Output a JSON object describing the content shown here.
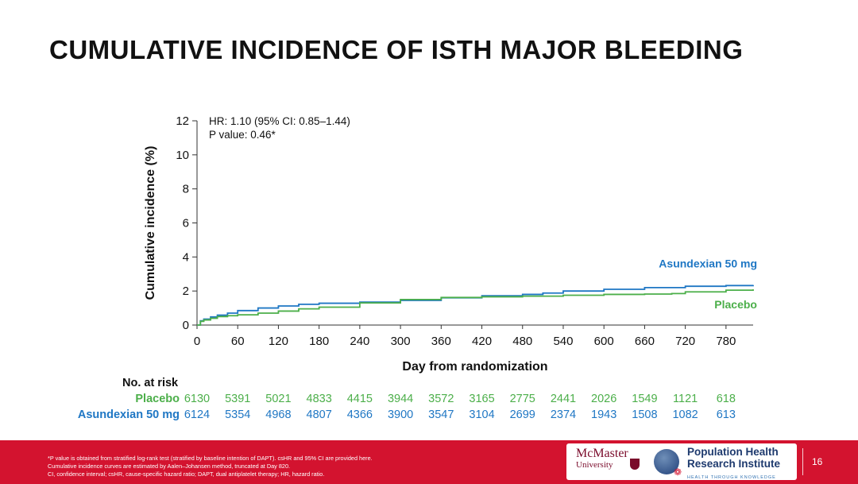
{
  "slide": {
    "title": "CUMULATIVE INCIDENCE OF ISTH MAJOR BLEEDING",
    "page_number": "16"
  },
  "colors": {
    "asundexian": "#1f77c4",
    "placebo": "#4caf4a",
    "footer": "#d3132f"
  },
  "chart_data": {
    "type": "line",
    "xlabel": "Day from randomization",
    "ylabel": "Cumulative incidence (%)",
    "xlim": [
      0,
      820
    ],
    "ylim": [
      0,
      12
    ],
    "x_ticks": [
      0,
      60,
      120,
      180,
      240,
      300,
      360,
      420,
      480,
      540,
      600,
      660,
      720,
      780
    ],
    "y_ticks": [
      0,
      2,
      4,
      6,
      8,
      10,
      12
    ],
    "annotations": [
      "HR: 1.10 (95% CI: 0.85–1.44)",
      "P value: 0.46*"
    ],
    "series": [
      {
        "name": "Asundexian 50 mg",
        "color": "#1f77c4",
        "x": [
          0,
          5,
          10,
          20,
          30,
          45,
          60,
          90,
          120,
          150,
          180,
          240,
          300,
          360,
          420,
          480,
          510,
          540,
          600,
          660,
          720,
          780,
          820
        ],
        "y": [
          0,
          0.25,
          0.35,
          0.48,
          0.58,
          0.7,
          0.85,
          1.0,
          1.12,
          1.22,
          1.28,
          1.35,
          1.45,
          1.6,
          1.72,
          1.8,
          1.88,
          2.0,
          2.1,
          2.2,
          2.28,
          2.32,
          2.35
        ]
      },
      {
        "name": "Placebo",
        "color": "#4caf4a",
        "x": [
          0,
          5,
          10,
          20,
          30,
          45,
          60,
          90,
          120,
          150,
          180,
          240,
          300,
          360,
          420,
          480,
          540,
          600,
          660,
          700,
          720,
          780,
          820
        ],
        "y": [
          0,
          0.22,
          0.3,
          0.4,
          0.5,
          0.55,
          0.6,
          0.7,
          0.82,
          0.95,
          1.05,
          1.3,
          1.5,
          1.62,
          1.66,
          1.7,
          1.75,
          1.8,
          1.82,
          1.85,
          1.95,
          2.05,
          2.1
        ]
      }
    ]
  },
  "risk_table": {
    "header": "No. at risk",
    "rows": [
      {
        "label": "Placebo",
        "color": "#4caf4a",
        "values": [
          "6130",
          "5391",
          "5021",
          "4833",
          "4415",
          "3944",
          "3572",
          "3165",
          "2775",
          "2441",
          "2026",
          "1549",
          "1121",
          "618"
        ]
      },
      {
        "label": "Asundexian 50 mg",
        "color": "#1f77c4",
        "values": [
          "6124",
          "5354",
          "4968",
          "4807",
          "4366",
          "3900",
          "3547",
          "3104",
          "2699",
          "2374",
          "1943",
          "1508",
          "1082",
          "613"
        ]
      }
    ]
  },
  "footer": {
    "notes": [
      "*P value is obtained from stratified log-rank test (stratified by baseline intention of DAPT). csHR and 95% CI are provided here.",
      "Cumulative incidence curves are estimated by Aalen–Johansen method, truncated at Day 820.",
      "CI, confidence interval; csHR, cause-specific hazard ratio; DAPT, dual antiplatelet therapy; HR, hazard ratio."
    ],
    "logo_mcmaster": "McMaster",
    "logo_mcmaster_sub": "University",
    "logo_phri_line1": "Population Health",
    "logo_phri_line2": "Research Institute",
    "logo_phri_tagline": "HEALTH THROUGH KNOWLEDGE"
  }
}
